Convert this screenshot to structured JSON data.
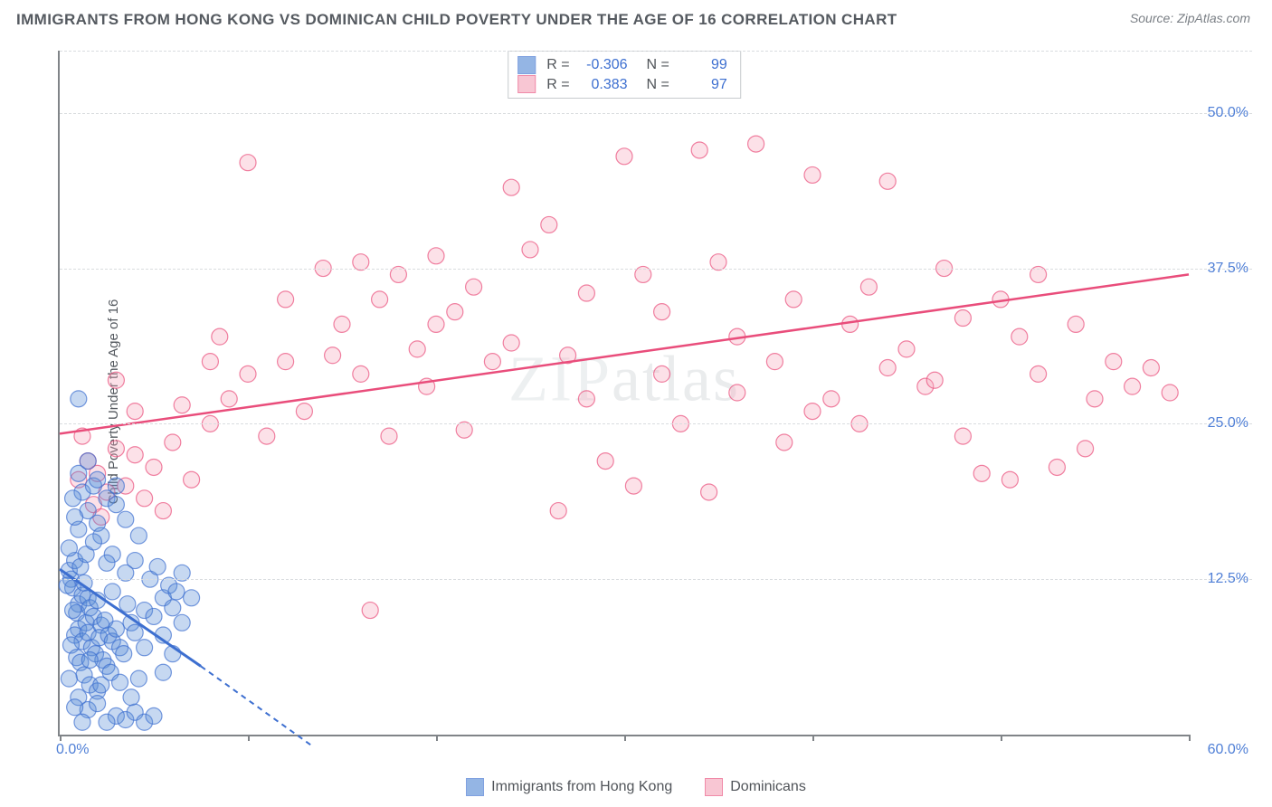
{
  "header": {
    "title": "IMMIGRANTS FROM HONG KONG VS DOMINICAN CHILD POVERTY UNDER THE AGE OF 16 CORRELATION CHART",
    "source": "Source: ZipAtlas.com"
  },
  "watermark": "ZIPatlas",
  "chart": {
    "type": "scatter",
    "ylabel": "Child Poverty Under the Age of 16",
    "xlim": [
      0,
      60
    ],
    "ylim": [
      0,
      55
    ],
    "x_ticks": [
      0,
      10,
      20,
      30,
      40,
      50,
      60
    ],
    "y_grid": [
      12.5,
      25.0,
      37.5,
      50.0
    ],
    "y_tick_labels": [
      "12.5%",
      "25.0%",
      "37.5%",
      "50.0%"
    ],
    "x_min_label": "0.0%",
    "x_max_label": "60.0%",
    "background_color": "#ffffff",
    "grid_color": "#d9dcdf",
    "axis_color": "#808488",
    "tick_label_color": "#4f7fd6",
    "marker_radius": 9,
    "marker_opacity": 0.35,
    "series": [
      {
        "name": "Immigrants from Hong Kong",
        "color": "#5b8fd6",
        "stroke": "#3d6fd0",
        "R": "-0.306",
        "N": "99",
        "trend": {
          "x1": 0,
          "y1": 13.3,
          "x2": 7.5,
          "y2": 5.5,
          "dash_to_x": 13.5,
          "dash_to_y": -1.0
        },
        "points": [
          [
            0.5,
            13.2
          ],
          [
            0.6,
            12.5
          ],
          [
            0.7,
            11.8
          ],
          [
            0.8,
            14.0
          ],
          [
            0.4,
            12.0
          ],
          [
            1.0,
            10.5
          ],
          [
            1.2,
            11.2
          ],
          [
            0.9,
            9.8
          ],
          [
            1.1,
            13.5
          ],
          [
            1.3,
            12.2
          ],
          [
            0.7,
            10.0
          ],
          [
            1.5,
            11.0
          ],
          [
            1.0,
            8.5
          ],
          [
            1.4,
            9.0
          ],
          [
            0.8,
            8.0
          ],
          [
            1.6,
            10.2
          ],
          [
            1.2,
            7.5
          ],
          [
            1.8,
            9.5
          ],
          [
            1.5,
            8.2
          ],
          [
            2.0,
            10.8
          ],
          [
            1.7,
            7.0
          ],
          [
            2.2,
            8.8
          ],
          [
            1.9,
            6.5
          ],
          [
            2.4,
            9.2
          ],
          [
            2.1,
            7.8
          ],
          [
            2.6,
            8.0
          ],
          [
            0.6,
            7.2
          ],
          [
            2.3,
            6.0
          ],
          [
            2.8,
            7.5
          ],
          [
            2.5,
            5.5
          ],
          [
            3.0,
            8.5
          ],
          [
            0.9,
            6.2
          ],
          [
            2.7,
            5.0
          ],
          [
            3.2,
            7.0
          ],
          [
            1.1,
            5.8
          ],
          [
            3.4,
            6.5
          ],
          [
            3.6,
            10.5
          ],
          [
            3.8,
            9.0
          ],
          [
            4.0,
            8.2
          ],
          [
            4.5,
            10.0
          ],
          [
            1.3,
            4.8
          ],
          [
            5.0,
            9.5
          ],
          [
            1.6,
            4.0
          ],
          [
            5.5,
            11.0
          ],
          [
            6.0,
            10.2
          ],
          [
            2.0,
            3.5
          ],
          [
            6.5,
            13.0
          ],
          [
            4.0,
            14.0
          ],
          [
            0.5,
            15.0
          ],
          [
            1.0,
            16.5
          ],
          [
            1.5,
            18.0
          ],
          [
            2.0,
            17.0
          ],
          [
            2.5,
            19.0
          ],
          [
            3.0,
            18.5
          ],
          [
            1.2,
            19.5
          ],
          [
            0.8,
            17.5
          ],
          [
            1.8,
            20.0
          ],
          [
            2.2,
            16.0
          ],
          [
            1.4,
            14.5
          ],
          [
            3.5,
            17.3
          ],
          [
            2.8,
            14.5
          ],
          [
            4.2,
            16.0
          ],
          [
            1.0,
            21.0
          ],
          [
            1.5,
            22.0
          ],
          [
            2.0,
            20.5
          ],
          [
            0.7,
            19.0
          ],
          [
            3.0,
            20.0
          ],
          [
            1.8,
            15.5
          ],
          [
            2.5,
            13.8
          ],
          [
            4.8,
            12.5
          ],
          [
            5.2,
            13.5
          ],
          [
            5.8,
            12.0
          ],
          [
            6.2,
            11.5
          ],
          [
            1.0,
            27.0
          ],
          [
            0.5,
            4.5
          ],
          [
            1.0,
            3.0
          ],
          [
            1.5,
            2.0
          ],
          [
            2.0,
            2.5
          ],
          [
            3.0,
            1.5
          ],
          [
            2.5,
            1.0
          ],
          [
            3.5,
            1.2
          ],
          [
            4.0,
            1.8
          ],
          [
            4.5,
            1.0
          ],
          [
            5.0,
            1.5
          ],
          [
            1.2,
            1.0
          ],
          [
            0.8,
            2.2
          ],
          [
            3.8,
            3.0
          ],
          [
            2.2,
            4.0
          ],
          [
            4.2,
            4.5
          ],
          [
            5.5,
            5.0
          ],
          [
            3.2,
            4.2
          ],
          [
            6.0,
            6.5
          ],
          [
            3.5,
            13.0
          ],
          [
            2.8,
            11.5
          ],
          [
            4.5,
            7.0
          ],
          [
            5.5,
            8.0
          ],
          [
            6.5,
            9.0
          ],
          [
            7.0,
            11.0
          ],
          [
            1.6,
            6.0
          ]
        ]
      },
      {
        "name": "Dominicans",
        "color": "#f5a9bd",
        "stroke": "#e94d7b",
        "R": "0.383",
        "N": "97",
        "trend": {
          "x1": 0,
          "y1": 24.2,
          "x2": 60,
          "y2": 37.0
        },
        "points": [
          [
            1.0,
            20.5
          ],
          [
            1.5,
            22.0
          ],
          [
            2.0,
            21.0
          ],
          [
            2.5,
            19.5
          ],
          [
            3.0,
            23.0
          ],
          [
            1.8,
            18.5
          ],
          [
            3.5,
            20.0
          ],
          [
            4.0,
            22.5
          ],
          [
            2.2,
            17.5
          ],
          [
            4.5,
            19.0
          ],
          [
            5.0,
            21.5
          ],
          [
            1.2,
            24.0
          ],
          [
            5.5,
            18.0
          ],
          [
            6.0,
            23.5
          ],
          [
            6.5,
            26.5
          ],
          [
            7.0,
            20.5
          ],
          [
            3.0,
            28.5
          ],
          [
            8.0,
            25.0
          ],
          [
            9.0,
            27.0
          ],
          [
            10.0,
            29.0
          ],
          [
            11.0,
            24.0
          ],
          [
            8.5,
            32.0
          ],
          [
            12.0,
            30.0
          ],
          [
            10.0,
            46.0
          ],
          [
            13.0,
            26.0
          ],
          [
            14.0,
            37.5
          ],
          [
            15.0,
            33.0
          ],
          [
            16.0,
            38.0
          ],
          [
            14.5,
            30.5
          ],
          [
            17.0,
            35.0
          ],
          [
            18.0,
            37.0
          ],
          [
            16.5,
            10.0
          ],
          [
            19.0,
            31.0
          ],
          [
            20.0,
            38.5
          ],
          [
            17.5,
            24.0
          ],
          [
            21.0,
            34.0
          ],
          [
            22.0,
            36.0
          ],
          [
            19.5,
            28.0
          ],
          [
            23.0,
            30.0
          ],
          [
            24.0,
            44.0
          ],
          [
            25.0,
            39.0
          ],
          [
            21.5,
            24.5
          ],
          [
            26.0,
            41.0
          ],
          [
            27.0,
            30.5
          ],
          [
            28.0,
            35.5
          ],
          [
            29.0,
            22.0
          ],
          [
            30.0,
            46.5
          ],
          [
            26.5,
            18.0
          ],
          [
            31.0,
            37.0
          ],
          [
            32.0,
            29.0
          ],
          [
            33.0,
            25.0
          ],
          [
            34.0,
            47.0
          ],
          [
            30.5,
            20.0
          ],
          [
            35.0,
            38.0
          ],
          [
            36.0,
            32.0
          ],
          [
            37.0,
            47.5
          ],
          [
            38.0,
            30.0
          ],
          [
            34.5,
            19.5
          ],
          [
            39.0,
            35.0
          ],
          [
            40.0,
            45.0
          ],
          [
            41.0,
            27.0
          ],
          [
            42.0,
            33.0
          ],
          [
            38.5,
            23.5
          ],
          [
            43.0,
            36.0
          ],
          [
            44.0,
            29.5
          ],
          [
            45.0,
            31.0
          ],
          [
            46.0,
            28.0
          ],
          [
            42.5,
            25.0
          ],
          [
            47.0,
            37.5
          ],
          [
            48.0,
            33.5
          ],
          [
            49.0,
            21.0
          ],
          [
            50.0,
            35.0
          ],
          [
            46.5,
            28.5
          ],
          [
            51.0,
            32.0
          ],
          [
            52.0,
            29.0
          ],
          [
            53.0,
            21.5
          ],
          [
            54.0,
            33.0
          ],
          [
            50.5,
            20.5
          ],
          [
            55.0,
            27.0
          ],
          [
            56.0,
            30.0
          ],
          [
            57.0,
            28.0
          ],
          [
            58.0,
            29.5
          ],
          [
            54.5,
            23.0
          ],
          [
            59.0,
            27.5
          ],
          [
            44.0,
            44.5
          ],
          [
            48.0,
            24.0
          ],
          [
            52.0,
            37.0
          ],
          [
            40.0,
            26.0
          ],
          [
            36.0,
            27.5
          ],
          [
            32.0,
            34.0
          ],
          [
            28.0,
            27.0
          ],
          [
            24.0,
            31.5
          ],
          [
            20.0,
            33.0
          ],
          [
            16.0,
            29.0
          ],
          [
            12.0,
            35.0
          ],
          [
            8.0,
            30.0
          ],
          [
            4.0,
            26.0
          ]
        ]
      }
    ]
  },
  "legend": {
    "series1": "Immigrants from Hong Kong",
    "series2": "Dominicans"
  }
}
